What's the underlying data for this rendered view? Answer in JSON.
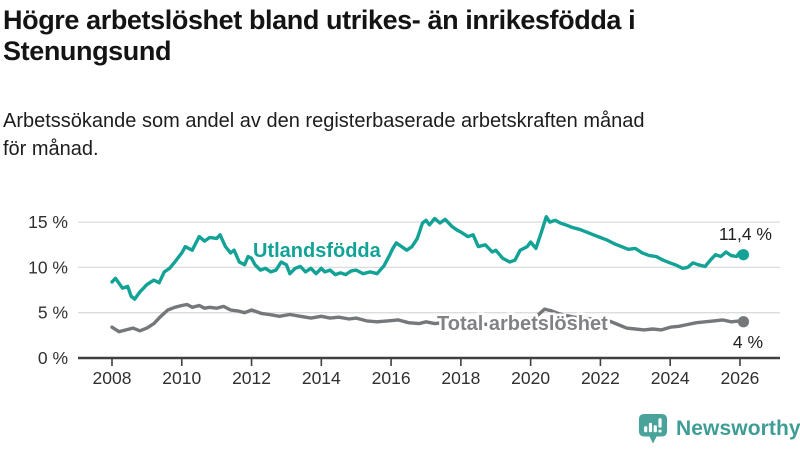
{
  "chart_data": {
    "type": "line",
    "title": "Högre arbetslöshet bland utrikes- än inrikesfödda i Stenungsund",
    "subtitle": "Arbetssökande som andel av den registerbaserade arbetskraften månad för månad.",
    "grid": true,
    "legend_position": "inline-labels",
    "x_ticks": [
      2008,
      2010,
      2012,
      2014,
      2016,
      2018,
      2020,
      2022,
      2024,
      2026
    ],
    "y_ticks": [
      0,
      5,
      10,
      15
    ],
    "y_tick_suffix": " %",
    "ylim": [
      0,
      16.5
    ],
    "xlim": [
      2007.9,
      2027.2
    ],
    "axis_color": "#404040",
    "grid_color": "#dcdcdc",
    "tick_label_color": "#303030",
    "end_label_color": "#222222",
    "series": [
      {
        "name": "Utlandsfödda",
        "color": "#12a296",
        "end_label": "11,4 %",
        "end_value": 11.4,
        "points": [
          [
            2008.0,
            8.4
          ],
          [
            2008.1,
            8.8
          ],
          [
            2008.3,
            7.7
          ],
          [
            2008.45,
            7.9
          ],
          [
            2008.55,
            6.8
          ],
          [
            2008.65,
            6.5
          ],
          [
            2008.8,
            7.3
          ],
          [
            2009.0,
            8.1
          ],
          [
            2009.2,
            8.6
          ],
          [
            2009.35,
            8.3
          ],
          [
            2009.5,
            9.5
          ],
          [
            2009.65,
            9.9
          ],
          [
            2009.8,
            10.6
          ],
          [
            2010.0,
            11.6
          ],
          [
            2010.1,
            12.3
          ],
          [
            2010.3,
            11.9
          ],
          [
            2010.5,
            13.4
          ],
          [
            2010.65,
            12.9
          ],
          [
            2010.8,
            13.3
          ],
          [
            2011.0,
            13.2
          ],
          [
            2011.1,
            13.6
          ],
          [
            2011.25,
            12.3
          ],
          [
            2011.4,
            11.6
          ],
          [
            2011.5,
            11.9
          ],
          [
            2011.65,
            10.6
          ],
          [
            2011.8,
            10.3
          ],
          [
            2011.9,
            11.2
          ],
          [
            2012.0,
            11.0
          ],
          [
            2012.1,
            10.3
          ],
          [
            2012.25,
            9.7
          ],
          [
            2012.4,
            9.9
          ],
          [
            2012.55,
            9.5
          ],
          [
            2012.7,
            9.7
          ],
          [
            2012.85,
            10.6
          ],
          [
            2013.0,
            10.3
          ],
          [
            2013.1,
            9.3
          ],
          [
            2013.25,
            9.9
          ],
          [
            2013.4,
            10.1
          ],
          [
            2013.55,
            9.5
          ],
          [
            2013.7,
            9.9
          ],
          [
            2013.85,
            9.3
          ],
          [
            2014.0,
            9.9
          ],
          [
            2014.1,
            9.5
          ],
          [
            2014.25,
            9.7
          ],
          [
            2014.4,
            9.2
          ],
          [
            2014.55,
            9.4
          ],
          [
            2014.7,
            9.2
          ],
          [
            2014.85,
            9.6
          ],
          [
            2015.0,
            9.7
          ],
          [
            2015.2,
            9.3
          ],
          [
            2015.4,
            9.5
          ],
          [
            2015.6,
            9.3
          ],
          [
            2015.8,
            10.2
          ],
          [
            2015.95,
            11.3
          ],
          [
            2016.05,
            12.1
          ],
          [
            2016.15,
            12.7
          ],
          [
            2016.3,
            12.3
          ],
          [
            2016.45,
            11.9
          ],
          [
            2016.6,
            12.3
          ],
          [
            2016.75,
            13.2
          ],
          [
            2016.9,
            14.9
          ],
          [
            2017.0,
            15.2
          ],
          [
            2017.1,
            14.7
          ],
          [
            2017.25,
            15.4
          ],
          [
            2017.4,
            14.9
          ],
          [
            2017.55,
            15.3
          ],
          [
            2017.75,
            14.5
          ],
          [
            2017.9,
            14.1
          ],
          [
            2018.0,
            13.9
          ],
          [
            2018.2,
            13.4
          ],
          [
            2018.35,
            13.6
          ],
          [
            2018.5,
            12.3
          ],
          [
            2018.7,
            12.5
          ],
          [
            2018.9,
            11.7
          ],
          [
            2019.0,
            11.9
          ],
          [
            2019.2,
            11.0
          ],
          [
            2019.4,
            10.6
          ],
          [
            2019.55,
            10.8
          ],
          [
            2019.7,
            11.9
          ],
          [
            2019.9,
            12.3
          ],
          [
            2020.0,
            12.8
          ],
          [
            2020.15,
            12.1
          ],
          [
            2020.3,
            13.8
          ],
          [
            2020.45,
            15.6
          ],
          [
            2020.55,
            15.0
          ],
          [
            2020.7,
            15.2
          ],
          [
            2020.85,
            14.9
          ],
          [
            2021.0,
            14.7
          ],
          [
            2021.2,
            14.4
          ],
          [
            2021.4,
            14.2
          ],
          [
            2021.6,
            13.9
          ],
          [
            2021.8,
            13.6
          ],
          [
            2022.0,
            13.3
          ],
          [
            2022.2,
            13.0
          ],
          [
            2022.4,
            12.6
          ],
          [
            2022.6,
            12.3
          ],
          [
            2022.8,
            12.0
          ],
          [
            2023.0,
            12.1
          ],
          [
            2023.2,
            11.6
          ],
          [
            2023.4,
            11.3
          ],
          [
            2023.6,
            11.2
          ],
          [
            2023.8,
            10.8
          ],
          [
            2024.0,
            10.5
          ],
          [
            2024.2,
            10.2
          ],
          [
            2024.35,
            9.9
          ],
          [
            2024.5,
            10.0
          ],
          [
            2024.65,
            10.5
          ],
          [
            2024.8,
            10.3
          ],
          [
            2025.0,
            10.1
          ],
          [
            2025.15,
            10.8
          ],
          [
            2025.3,
            11.4
          ],
          [
            2025.45,
            11.2
          ],
          [
            2025.6,
            11.7
          ],
          [
            2025.75,
            11.3
          ],
          [
            2025.9,
            11.2
          ],
          [
            2026.0,
            11.7
          ],
          [
            2026.1,
            11.4
          ]
        ]
      },
      {
        "name": "Total arbetslöshet",
        "color": "#75787b",
        "label_color": "#808385",
        "end_label": "4 %",
        "end_value": 4.0,
        "points": [
          [
            2008.0,
            3.4
          ],
          [
            2008.2,
            2.9
          ],
          [
            2008.4,
            3.1
          ],
          [
            2008.6,
            3.3
          ],
          [
            2008.8,
            3.0
          ],
          [
            2009.0,
            3.3
          ],
          [
            2009.2,
            3.8
          ],
          [
            2009.4,
            4.6
          ],
          [
            2009.6,
            5.3
          ],
          [
            2009.8,
            5.6
          ],
          [
            2010.0,
            5.8
          ],
          [
            2010.15,
            5.9
          ],
          [
            2010.3,
            5.6
          ],
          [
            2010.5,
            5.8
          ],
          [
            2010.65,
            5.5
          ],
          [
            2010.8,
            5.6
          ],
          [
            2011.0,
            5.5
          ],
          [
            2011.2,
            5.7
          ],
          [
            2011.4,
            5.3
          ],
          [
            2011.6,
            5.2
          ],
          [
            2011.8,
            5.0
          ],
          [
            2012.0,
            5.3
          ],
          [
            2012.3,
            4.9
          ],
          [
            2012.5,
            4.8
          ],
          [
            2012.8,
            4.6
          ],
          [
            2013.1,
            4.8
          ],
          [
            2013.4,
            4.6
          ],
          [
            2013.7,
            4.4
          ],
          [
            2014.0,
            4.6
          ],
          [
            2014.25,
            4.4
          ],
          [
            2014.5,
            4.5
          ],
          [
            2014.8,
            4.3
          ],
          [
            2015.0,
            4.4
          ],
          [
            2015.3,
            4.1
          ],
          [
            2015.6,
            4.0
          ],
          [
            2015.9,
            4.1
          ],
          [
            2016.2,
            4.2
          ],
          [
            2016.5,
            3.9
          ],
          [
            2016.8,
            3.8
          ],
          [
            2017.0,
            4.0
          ],
          [
            2017.25,
            3.8
          ],
          [
            2017.5,
            3.9
          ],
          [
            2017.75,
            3.7
          ],
          [
            2018.0,
            3.8
          ],
          [
            2018.25,
            3.7
          ],
          [
            2018.5,
            3.8
          ],
          [
            2018.75,
            3.7
          ],
          [
            2019.0,
            3.8
          ],
          [
            2019.25,
            3.9
          ],
          [
            2019.5,
            4.0
          ],
          [
            2019.75,
            4.2
          ],
          [
            2020.0,
            4.4
          ],
          [
            2020.2,
            4.7
          ],
          [
            2020.4,
            5.4
          ],
          [
            2020.6,
            5.2
          ],
          [
            2020.8,
            4.9
          ],
          [
            2021.0,
            4.7
          ],
          [
            2021.25,
            4.5
          ],
          [
            2021.5,
            4.4
          ],
          [
            2021.75,
            4.3
          ],
          [
            2022.0,
            4.2
          ],
          [
            2022.25,
            4.1
          ],
          [
            2022.5,
            3.7
          ],
          [
            2022.75,
            3.3
          ],
          [
            2023.0,
            3.2
          ],
          [
            2023.25,
            3.1
          ],
          [
            2023.5,
            3.2
          ],
          [
            2023.75,
            3.1
          ],
          [
            2024.0,
            3.4
          ],
          [
            2024.25,
            3.5
          ],
          [
            2024.5,
            3.7
          ],
          [
            2024.75,
            3.9
          ],
          [
            2025.0,
            4.0
          ],
          [
            2025.25,
            4.1
          ],
          [
            2025.5,
            4.2
          ],
          [
            2025.75,
            4.0
          ],
          [
            2026.0,
            4.1
          ],
          [
            2026.1,
            4.0
          ]
        ]
      }
    ]
  },
  "footer": {
    "brand": "Newsworthy",
    "logo_color": "#4aa39b",
    "logo_text_color": "#3f9d95",
    "logo_bar_color": "#ffffff"
  }
}
